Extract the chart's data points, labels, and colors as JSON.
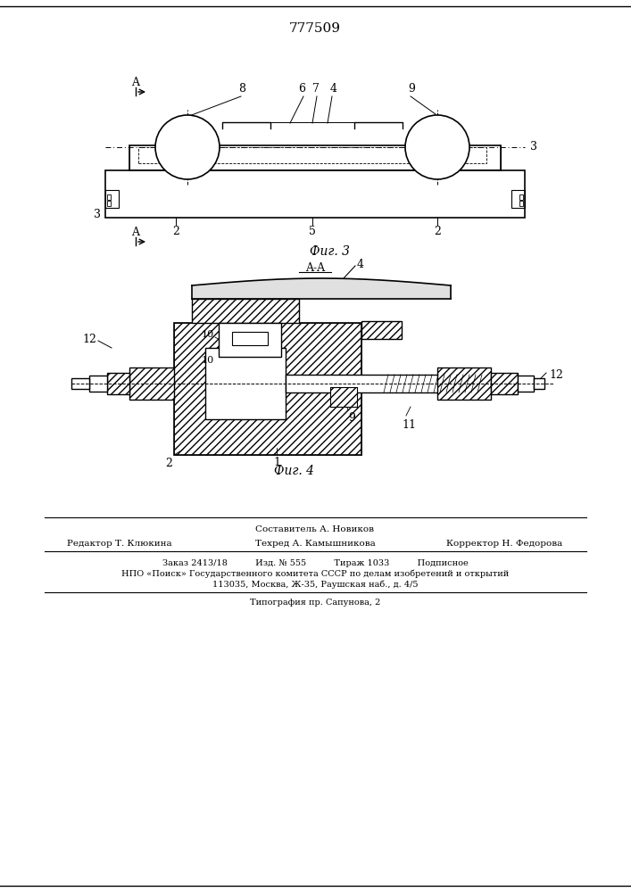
{
  "title": "777509",
  "bg_color": "#ffffff",
  "fig3_label": "Фиг. 3",
  "fig4_label": "Фиг. 4",
  "section_label": "A-A",
  "footer_line1": "Составитель А. Новиков",
  "footer_line2_left": "Редактор Т. Клюкина",
  "footer_line2_mid": "Техред А. Камышникова",
  "footer_line2_right": "Корректор Н. Федорова",
  "footer_line3": "Заказ 2413/18          Изд. № 555          Тираж 1033          Подписное",
  "footer_line4": "НПО «Поиск» Государственного комитета СССР по делам изобретений и открытий",
  "footer_line5": "113035, Москва, Ж-35, Раушская наб., д. 4/5",
  "footer_line6": "Типография пр. Сапунова, 2"
}
